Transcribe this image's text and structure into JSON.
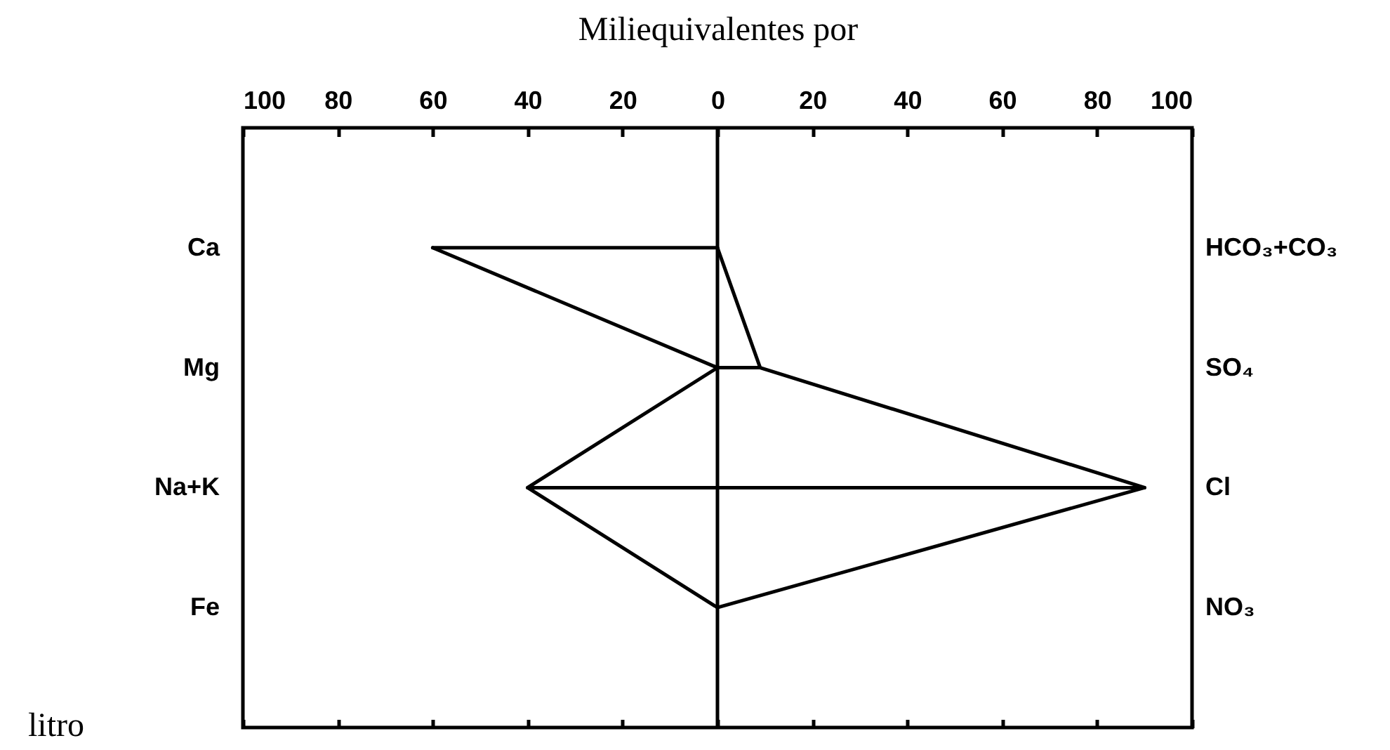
{
  "chart_data": {
    "type": "line",
    "orientation": "horizontal",
    "xlabel": "Miliequivalentes por",
    "annotations": [
      "litro"
    ],
    "categories": [
      "Ca",
      "Mg",
      "Na+K",
      "Fe"
    ],
    "y2_categories": [
      "HCO₃+CO₃",
      "SO₄",
      "Cl",
      "NO₃"
    ],
    "series": [
      {
        "color": "#000000",
        "values": [
          -60,
          0,
          -40,
          0
        ],
        "errors": [
          [
            -60,
            0
          ],
          [
            0,
            9
          ],
          [
            -40,
            90
          ],
          null
        ]
      },
      {
        "color": "#000000",
        "axis": "y2",
        "values": [
          0,
          9,
          90,
          0
        ]
      }
    ],
    "xlim": [
      -100,
      100
    ],
    "xticks": [
      {
        "value": -100,
        "label": "100"
      },
      {
        "value": -80,
        "label": "80"
      },
      {
        "value": -60,
        "label": "60"
      },
      {
        "value": -40,
        "label": "40"
      },
      {
        "value": -20,
        "label": "20"
      },
      0,
      20,
      40,
      60,
      80,
      100
    ],
    "ref_lines": [
      {
        "axis": "x",
        "value": 0,
        "color": "#000000"
      }
    ],
    "line_style": "solid"
  }
}
